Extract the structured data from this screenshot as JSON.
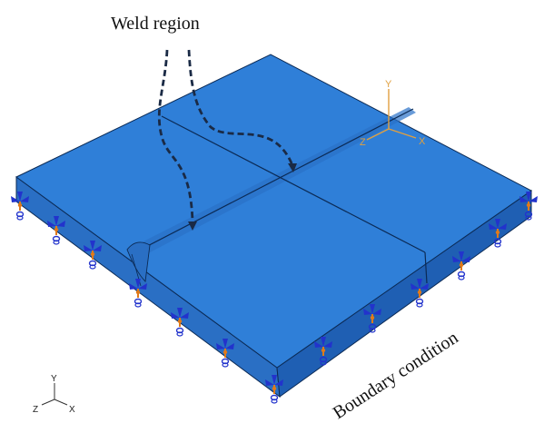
{
  "annotations": {
    "weld_region": "Weld region",
    "boundary_condition": "Boundary condition"
  },
  "local_axes": {
    "x": "X",
    "y": "Y",
    "z": "Z"
  },
  "global_triad": {
    "x": "X",
    "y": "Y",
    "z": "Z"
  },
  "colors": {
    "plate_top": "#2f7fd8",
    "plate_side_left": "#2a6fc4",
    "plate_side_front": "#1f5fb3",
    "edge": "#0b2a55",
    "constraint_blue": "#2233cc",
    "constraint_orange": "#e07a1a",
    "local_axis": "#e0a040"
  }
}
